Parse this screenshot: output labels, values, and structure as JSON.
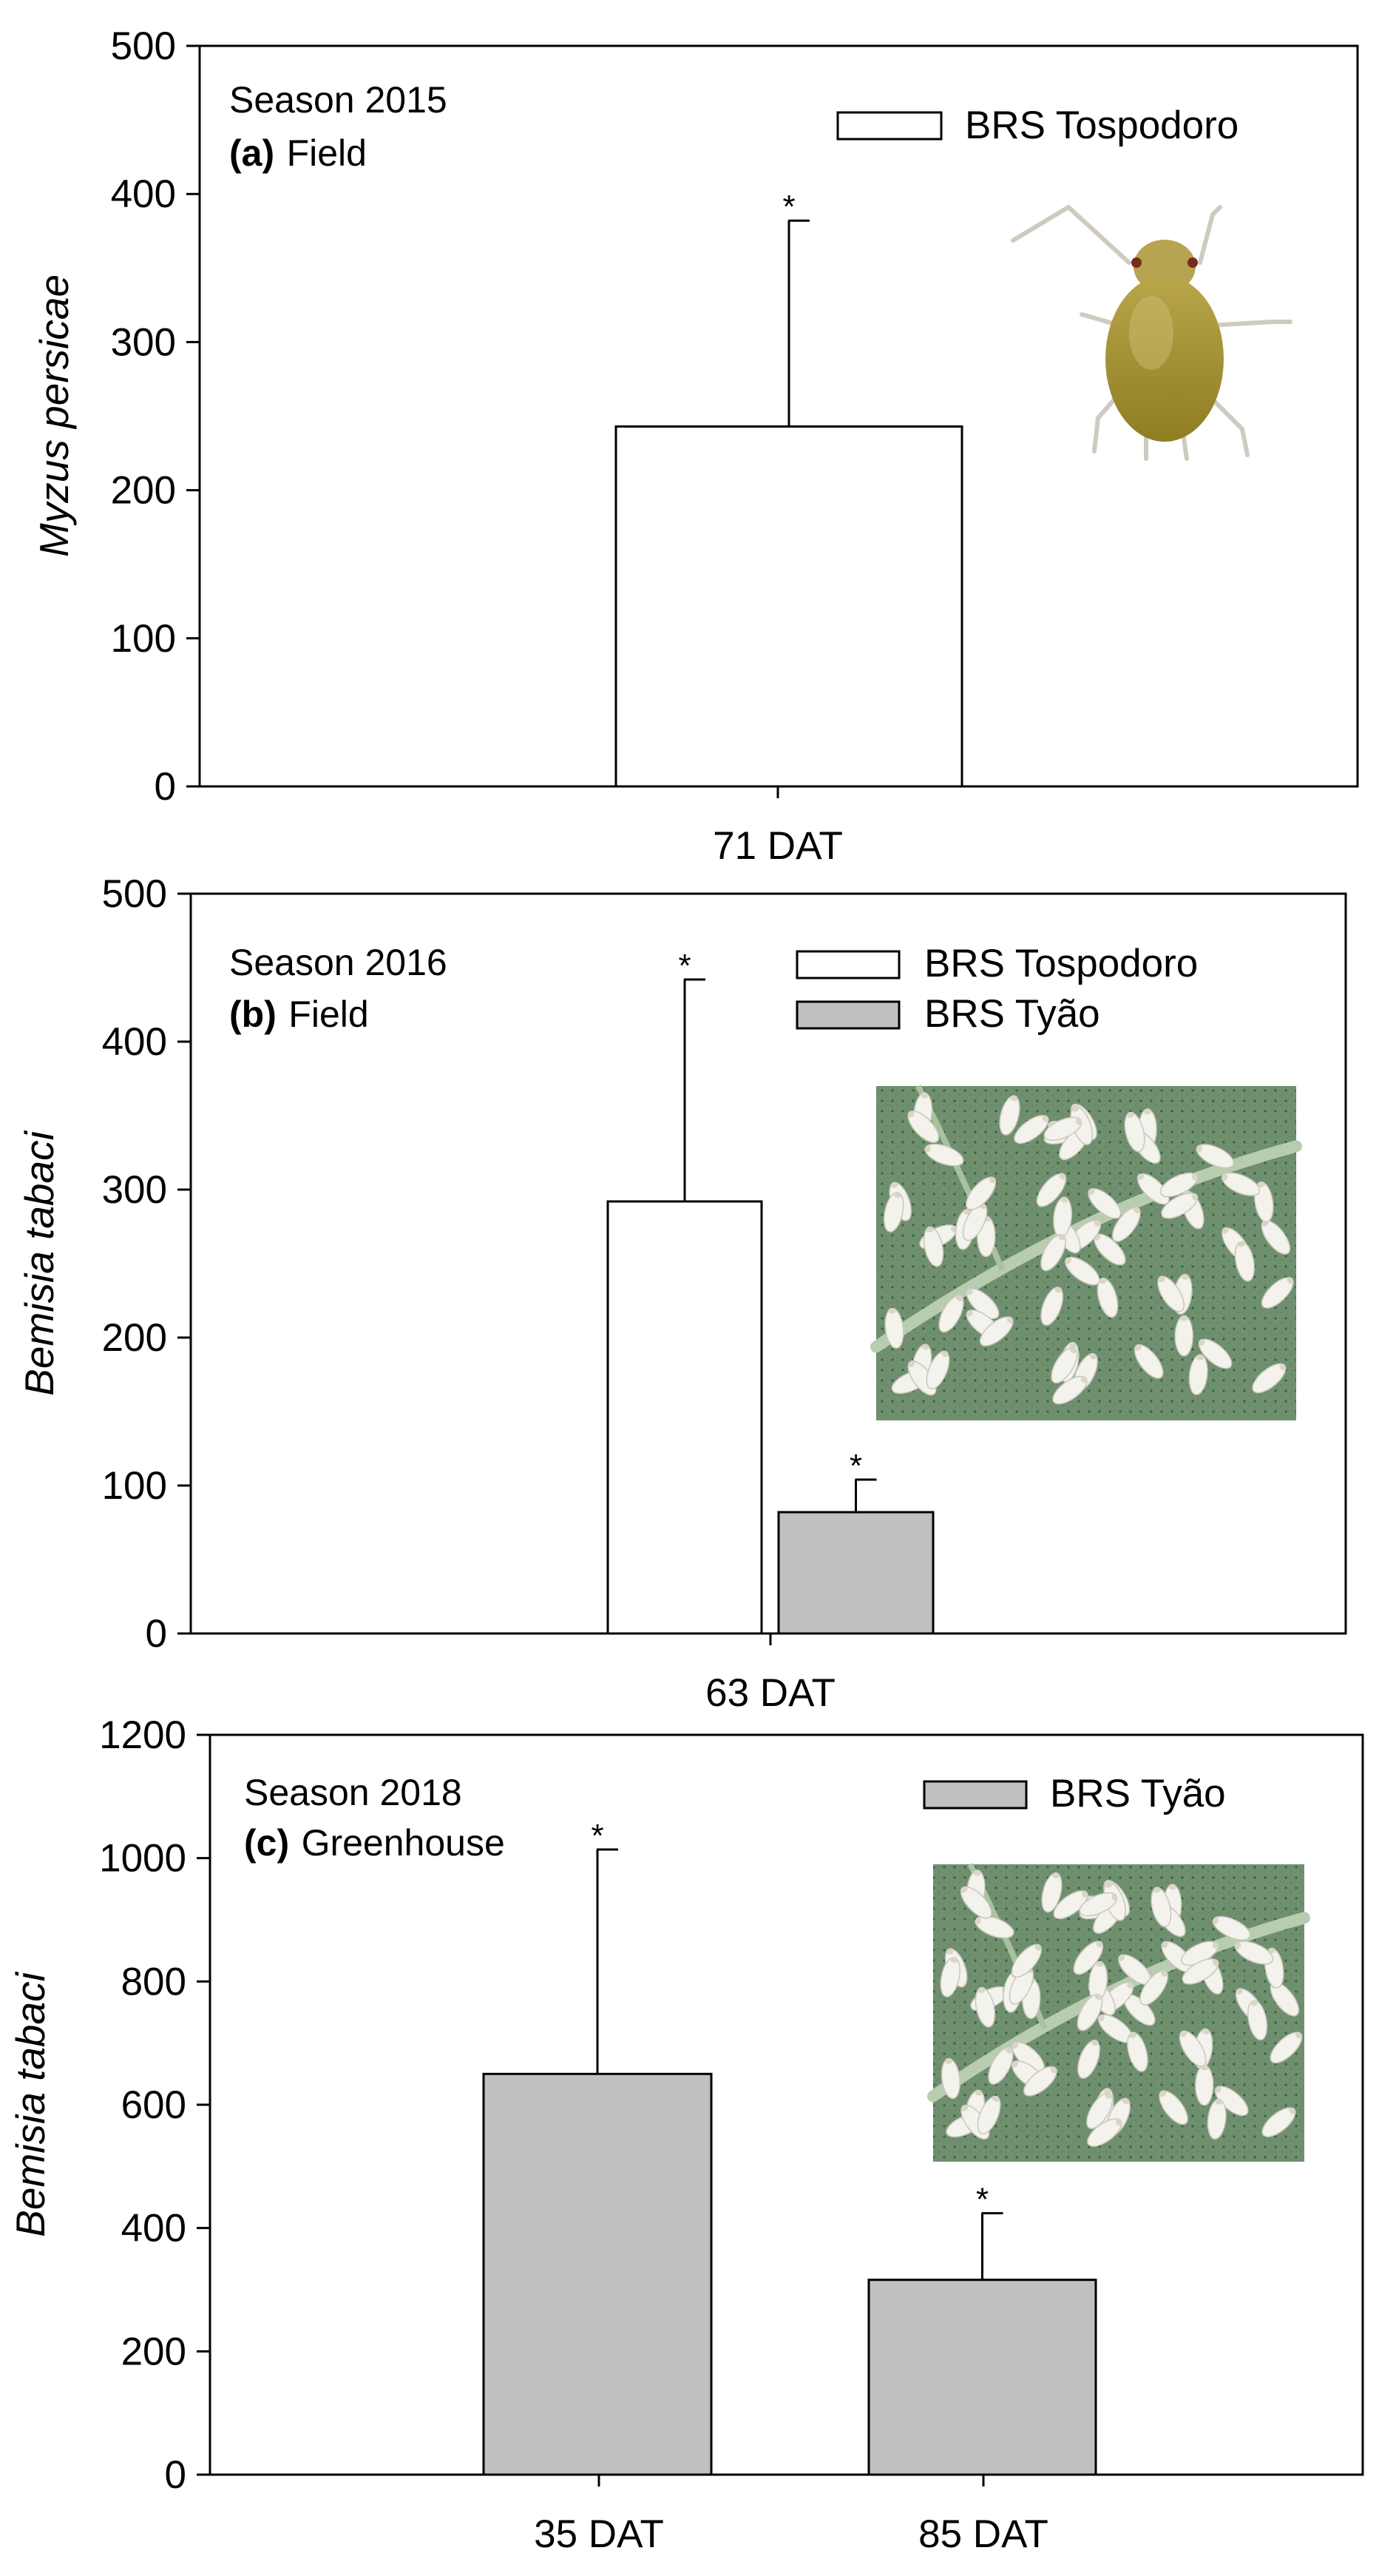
{
  "chart_data": [
    {
      "type": "bar",
      "panel": "a",
      "annotation": {
        "season": "Season 2015",
        "panel_label": "(a)",
        "location": "Field"
      },
      "ylabel": "Myzus persicae",
      "xlabel": "",
      "ylim": [
        0,
        500
      ],
      "yticks": [
        "0",
        "100",
        "200",
        "300",
        "400",
        "500"
      ],
      "categories": [
        "71 DAT"
      ],
      "series": [
        {
          "name": "BRS Tospodoro",
          "color": "#ffffff",
          "values": [
            243
          ],
          "errors": [
            139
          ],
          "marks": [
            "*"
          ]
        }
      ],
      "legend_position": "top-right",
      "inset_image": "aphid-photo",
      "grid": false
    },
    {
      "type": "bar",
      "panel": "b",
      "annotation": {
        "season": "Season 2016",
        "panel_label": "(b)",
        "location": "Field"
      },
      "ylabel": "Bemisia tabaci",
      "xlabel": "",
      "ylim": [
        0,
        500
      ],
      "yticks": [
        "0",
        "100",
        "200",
        "300",
        "400",
        "500"
      ],
      "categories": [
        "63 DAT"
      ],
      "series": [
        {
          "name": "BRS Tospodoro",
          "color": "#ffffff",
          "values": [
            292
          ],
          "errors": [
            150
          ],
          "marks": [
            "*"
          ]
        },
        {
          "name": "BRS Tyão",
          "color": "#c0c0c0",
          "values": [
            82
          ],
          "errors": [
            22
          ],
          "marks": [
            "*"
          ]
        }
      ],
      "legend_position": "top-right",
      "inset_image": "whitefly-photo",
      "grid": false
    },
    {
      "type": "bar",
      "panel": "c",
      "annotation": {
        "season": "Season 2018",
        "panel_label": "(c)",
        "location": "Greenhouse"
      },
      "ylabel": "Bemisia tabaci",
      "xlabel": "",
      "ylim": [
        0,
        1200
      ],
      "yticks": [
        "0",
        "200",
        "400",
        "600",
        "800",
        "1000",
        "1200"
      ],
      "categories": [
        "35 DAT",
        "85 DAT"
      ],
      "series": [
        {
          "name": "BRS Tyão",
          "color": "#c0c0c0",
          "values": [
            650,
            316
          ],
          "errors": [
            364,
            108
          ],
          "marks": [
            "*",
            "*"
          ]
        }
      ],
      "legend_position": "top-right",
      "inset_image": "whitefly-photo",
      "grid": false
    }
  ]
}
